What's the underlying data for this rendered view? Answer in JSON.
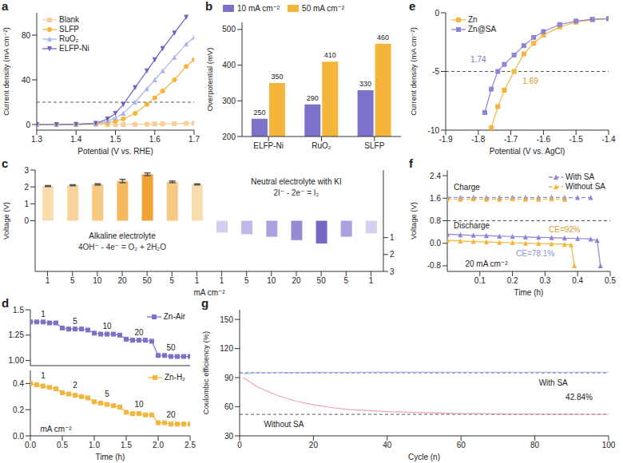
{
  "chart_data": [
    {
      "panel_label": "a",
      "type": "line",
      "x_label": "Potential (V vs. RHE)",
      "y_label": "Current density (mA cm⁻²)",
      "xlim": [
        1.3,
        1.7
      ],
      "xticks": [
        1.3,
        1.4,
        1.5,
        1.6,
        1.7
      ],
      "ylim": [
        -5,
        100
      ],
      "yticks": [
        0,
        40,
        80
      ],
      "reference_lines": [
        20
      ],
      "legend": "top-left",
      "series": [
        {
          "name": "Blank",
          "color": "#f7cf95",
          "marker": "square",
          "x": [
            1.3,
            1.35,
            1.4,
            1.45,
            1.48,
            1.5,
            1.52,
            1.55,
            1.58,
            1.6,
            1.62,
            1.65,
            1.68,
            1.7
          ],
          "values": [
            0,
            0,
            0,
            0,
            0,
            0,
            0,
            0.2,
            0.3,
            0.5,
            0.6,
            0.8,
            1,
            1.2
          ]
        },
        {
          "name": "SLFP",
          "color": "#f5b43a",
          "marker": "circle",
          "x": [
            1.3,
            1.35,
            1.4,
            1.45,
            1.48,
            1.5,
            1.52,
            1.55,
            1.58,
            1.6,
            1.62,
            1.65,
            1.68,
            1.7
          ],
          "values": [
            0,
            0,
            0,
            0.5,
            1.5,
            3,
            5,
            10,
            18,
            24,
            30,
            40,
            52,
            58
          ]
        },
        {
          "name": "RuO₂",
          "color": "#a8b6e8",
          "marker": "triangle",
          "x": [
            1.3,
            1.35,
            1.4,
            1.45,
            1.48,
            1.5,
            1.52,
            1.55,
            1.58,
            1.6,
            1.62,
            1.65,
            1.68,
            1.7
          ],
          "values": [
            0,
            0,
            0.2,
            0.8,
            3,
            6,
            10,
            20,
            32,
            40,
            48,
            60,
            72,
            78
          ]
        },
        {
          "name": "ELFP-Ni",
          "color": "#6f62c2",
          "marker": "triangle-down",
          "x": [
            1.3,
            1.35,
            1.4,
            1.45,
            1.48,
            1.5,
            1.52,
            1.55,
            1.58,
            1.6,
            1.62,
            1.65,
            1.68
          ],
          "values": [
            0,
            0,
            0.2,
            1,
            5,
            10,
            18,
            33,
            48,
            58,
            68,
            82,
            96
          ]
        }
      ]
    },
    {
      "panel_label": "b",
      "type": "bar",
      "categories": [
        "ELFP-Ni",
        "RuO₂",
        "SLFP"
      ],
      "y_label": "Overpotential (mV)",
      "ylim": [
        200,
        520
      ],
      "yticks": [
        200,
        300,
        400,
        500
      ],
      "legend": "top",
      "data_labels": true,
      "series": [
        {
          "name": "10 mA cm⁻²",
          "color": "#7d72c9",
          "values": [
            250,
            290,
            330
          ]
        },
        {
          "name": "50 mA cm⁻²",
          "color": "#f5b43a",
          "values": [
            350,
            410,
            460
          ]
        }
      ]
    },
    {
      "panel_label": "c",
      "type": "bar",
      "x_label": "mA cm⁻²",
      "y_label": "Voltage (V)",
      "categories": [
        1,
        5,
        10,
        20,
        50,
        5,
        1,
        1,
        5,
        10,
        20,
        50,
        5,
        1
      ],
      "ylim": [
        -3,
        3
      ],
      "yticks": [
        0,
        1,
        2,
        3
      ],
      "y2lim": [
        3,
        -3
      ],
      "y2ticks": [
        1,
        2,
        3
      ],
      "series": [
        {
          "name": "Alkaline electrolyte",
          "reaction": "4OH⁻ - 4e⁻ = O₂ + 2H₂O",
          "colors": [
            "#f9dcae",
            "#f8d39a",
            "#f7c87f",
            "#f5b95f",
            "#f2a335",
            "#f7c87f",
            "#f9dcae",
            null,
            null,
            null,
            null,
            null,
            null,
            null
          ],
          "values": [
            2.05,
            2.1,
            2.15,
            2.35,
            2.75,
            2.3,
            2.15,
            null,
            null,
            null,
            null,
            null,
            null,
            null
          ],
          "errors": [
            0.03,
            0.03,
            0.04,
            0.1,
            0.08,
            0.05,
            0.03,
            null,
            null,
            null,
            null,
            null,
            null,
            null
          ]
        },
        {
          "name": "Neutral electrolyte with KI",
          "reaction": "2I⁻ - 2e⁻ = I₂",
          "axis": "y2",
          "colors": [
            null,
            null,
            null,
            null,
            null,
            null,
            null,
            "#d3cff0",
            "#bfb9e8",
            "#aaa2de",
            "#948bd3",
            "#7468c2",
            "#aaa2de",
            "#d3cff0"
          ],
          "values": [
            null,
            null,
            null,
            null,
            null,
            null,
            null,
            0.7,
            0.8,
            0.95,
            1.15,
            1.35,
            0.95,
            0.75
          ]
        }
      ]
    },
    {
      "panel_label": "d",
      "type": "line",
      "tick_labels": "y",
      "xlim": [
        0,
        2.5
      ],
      "ylim": [
        0.95,
        1.5
      ],
      "yticks": [
        {
          "value": 1,
          "label": "1.00"
        },
        1.25,
        1.5
      ],
      "legend": "top-right",
      "series": [
        {
          "name": "Zn-Air",
          "color": "#7d72c9",
          "marker": "square",
          "x": [
            0,
            0.1,
            0.2,
            0.3,
            0.4,
            0.5,
            0.6,
            0.7,
            0.8,
            0.9,
            1,
            1.1,
            1.2,
            1.3,
            1.4,
            1.5,
            1.6,
            1.7,
            1.8,
            1.9,
            2,
            2.1,
            2.2,
            2.3,
            2.4,
            2.5
          ],
          "values": [
            1.38,
            1.38,
            1.38,
            1.37,
            1.37,
            1.32,
            1.31,
            1.31,
            1.31,
            1.3,
            1.27,
            1.26,
            1.26,
            1.26,
            1.25,
            1.21,
            1.2,
            1.2,
            1.2,
            1.19,
            1.05,
            1.05,
            1.04,
            1.04,
            1.04,
            1.04
          ]
        }
      ],
      "annotations": [
        {
          "text": "1",
          "x": 0.2,
          "y": 1.46
        },
        {
          "text": "5",
          "x": 0.7,
          "y": 1.39
        },
        {
          "text": "10",
          "x": 1.2,
          "y": 1.34
        },
        {
          "text": "20",
          "x": 1.7,
          "y": 1.28
        },
        {
          "text": "50",
          "x": 2.2,
          "y": 1.13
        }
      ]
    },
    {
      "type": "line",
      "x_label": "Time (h)",
      "xlim": [
        0,
        2.5
      ],
      "xticks": [
        {
          "value": 0,
          "label": "0.0"
        },
        0.5,
        {
          "value": 1,
          "label": "1.0"
        },
        1.5,
        {
          "value": 2,
          "label": "2.0"
        },
        2.5
      ],
      "ylim": [
        0,
        0.5
      ],
      "yticks": [
        {
          "value": 0,
          "label": "0.0"
        },
        0.2,
        0.4
      ],
      "legend": "top-right",
      "series": [
        {
          "name": "Zn-H₂",
          "color": "#f5b43a",
          "marker": "square",
          "x": [
            0,
            0.1,
            0.2,
            0.3,
            0.4,
            0.5,
            0.6,
            0.7,
            0.8,
            0.9,
            1,
            1.1,
            1.2,
            1.3,
            1.4,
            1.5,
            1.6,
            1.7,
            1.8,
            1.9,
            2,
            2.1,
            2.2,
            2.3,
            2.4,
            2.5
          ],
          "values": [
            0.4,
            0.39,
            0.38,
            0.37,
            0.36,
            0.33,
            0.32,
            0.31,
            0.3,
            0.29,
            0.26,
            0.25,
            0.24,
            0.23,
            0.22,
            0.18,
            0.17,
            0.17,
            0.16,
            0.16,
            0.1,
            0.1,
            0.09,
            0.09,
            0.09,
            0.09
          ]
        }
      ],
      "annotations": [
        {
          "text": "1",
          "x": 0.2,
          "y": 0.46
        },
        {
          "text": "2",
          "x": 0.7,
          "y": 0.39
        },
        {
          "text": "5",
          "x": 1.2,
          "y": 0.32
        },
        {
          "text": "10",
          "x": 1.7,
          "y": 0.24
        },
        {
          "text": "20",
          "x": 2.2,
          "y": 0.16
        },
        {
          "text": "mA cm⁻²",
          "x": 0.4,
          "y": 0.05
        }
      ]
    },
    {
      "panel_label": "e",
      "type": "line",
      "x_label": "Potential (V vs. AgCl)",
      "y_label": "Current density (mA cm⁻²)",
      "xlim": [
        -1.9,
        -1.4
      ],
      "xticks": [
        -1.9,
        -1.8,
        -1.7,
        -1.6,
        -1.5,
        -1.4
      ],
      "ylim": [
        -10,
        0
      ],
      "yticks": [
        -10,
        -5,
        0
      ],
      "reference_lines": [
        -5
      ],
      "legend": "top-left",
      "series": [
        {
          "name": "Zn",
          "color": "#f5b43a",
          "marker": "square",
          "x": [
            -1.4,
            -1.45,
            -1.5,
            -1.55,
            -1.6,
            -1.63,
            -1.66,
            -1.69,
            -1.72,
            -1.74,
            -1.76
          ],
          "values": [
            -0.5,
            -0.6,
            -0.8,
            -1.2,
            -1.9,
            -2.6,
            -3.5,
            -5,
            -6.6,
            -8,
            -9.8
          ]
        },
        {
          "name": "Zn@SA",
          "color": "#8e84d6",
          "marker": "square",
          "x": [
            -1.4,
            -1.45,
            -1.5,
            -1.55,
            -1.6,
            -1.63,
            -1.66,
            -1.69,
            -1.72,
            -1.74,
            -1.76,
            -1.78
          ],
          "values": [
            -0.5,
            -0.55,
            -0.7,
            -1,
            -1.6,
            -2.1,
            -2.8,
            -3.6,
            -4.4,
            -5,
            -6.5,
            -8.5
          ]
        }
      ],
      "annotations": [
        {
          "text": "1.74",
          "x": -1.8,
          "y": -4,
          "color": "#7d72c9"
        },
        {
          "text": "1.69",
          "x": -1.64,
          "y": -5.8,
          "color": "#d99a2b"
        }
      ]
    },
    {
      "panel_label": "f",
      "type": "line",
      "x_label": "Time (h)",
      "y_label": "Voltage (V)",
      "xlim": [
        0,
        0.5
      ],
      "xticks": [
        0.1,
        0.2,
        0.3,
        0.4,
        0.5
      ],
      "ylim": [
        -1,
        2.6
      ],
      "yticks": [
        -0.8,
        {
          "value": 0,
          "label": "0.0"
        },
        0.8,
        1.6,
        2.4
      ],
      "reference_lines": [
        0.8
      ],
      "legend": "top-right",
      "series": [
        {
          "name": "With SA",
          "color": "#8e84d6",
          "marker": "triangle",
          "line_style": "dashed",
          "x": [
            0,
            0.04,
            0.08,
            0.12,
            0.16,
            0.2,
            0.24,
            0.28,
            0.32,
            0.36,
            0.4,
            0.44
          ],
          "values": [
            1.63,
            1.62,
            1.63,
            1.62,
            1.62,
            1.63,
            1.62,
            1.62,
            1.63,
            1.62,
            1.62,
            1.62
          ]
        },
        {
          "name": "Without SA",
          "color": "#f5b43a",
          "marker": "triangle",
          "line_style": "dashed",
          "x": [
            0,
            0.04,
            0.08,
            0.12,
            0.16,
            0.2,
            0.24,
            0.28,
            0.32,
            0.36
          ],
          "values": [
            1.57,
            1.56,
            1.57,
            1.56,
            1.56,
            1.57,
            1.56,
            1.56,
            1.57,
            1.56
          ]
        },
        {
          "name": "With SA",
          "color": "#8e84d6",
          "marker": "triangle",
          "x": [
            0,
            0.04,
            0.08,
            0.12,
            0.16,
            0.2,
            0.24,
            0.28,
            0.32,
            0.36,
            0.4,
            0.44,
            0.46,
            0.47
          ],
          "values": [
            0.32,
            0.3,
            0.28,
            0.27,
            0.25,
            0.24,
            0.22,
            0.21,
            0.2,
            0.18,
            0.17,
            0.15,
            0.1,
            -0.8
          ]
        },
        {
          "name": "Without SA",
          "color": "#f5b43a",
          "marker": "triangle",
          "x": [
            0,
            0.04,
            0.08,
            0.12,
            0.16,
            0.2,
            0.24,
            0.28,
            0.32,
            0.36,
            0.38,
            0.39
          ],
          "values": [
            0.1,
            0.08,
            0.06,
            0.05,
            0.03,
            0.02,
            0,
            -0.01,
            -0.02,
            -0.04,
            -0.06,
            -0.8
          ]
        }
      ],
      "annotations": [
        {
          "text": "Charge",
          "x": 0.06,
          "y": 2
        },
        {
          "text": "Discharge",
          "x": 0.075,
          "y": 0.62
        },
        {
          "text": "CE=92%",
          "x": 0.36,
          "y": 0.5,
          "color": "#d99a2b"
        },
        {
          "text": "CE=78.1%",
          "x": 0.27,
          "y": -0.35,
          "color": "#7f94d6"
        },
        {
          "text": "20 mA cm⁻²",
          "x": 0.12,
          "y": -0.72
        }
      ]
    },
    {
      "panel_label": "g",
      "type": "line",
      "x_label": "Cycle (n)",
      "y_label": "Coulombic efficiency (%)",
      "xlim": [
        0,
        100
      ],
      "xticks": [
        0,
        20,
        40,
        60,
        80,
        100
      ],
      "ylim": [
        30,
        160
      ],
      "yticks": [
        30,
        60,
        90,
        120,
        150
      ],
      "reference_lines": [
        95,
        52.16
      ],
      "series": [
        {
          "color": "#9fb0e8",
          "marker": "none",
          "x": [
            1,
            5,
            10,
            15,
            20,
            25,
            30,
            35,
            40,
            45,
            50,
            55,
            60,
            65,
            70,
            75,
            80,
            85,
            90,
            95,
            100
          ],
          "values": [
            94,
            95,
            95.2,
            95.3,
            95.3,
            95.4,
            95.4,
            95.5,
            95.5,
            95.5,
            95.5,
            95.6,
            95.6,
            95.6,
            95.6,
            95.6,
            95.6,
            95.6,
            95.6,
            95.6,
            95.6
          ]
        },
        {
          "color": "#f0a0b4",
          "marker": "none",
          "x": [
            1,
            5,
            10,
            15,
            20,
            25,
            30,
            35,
            40,
            45,
            50,
            55,
            60,
            65,
            70,
            75,
            80,
            85,
            90,
            95,
            100
          ],
          "values": [
            90,
            80,
            72,
            66,
            62,
            59,
            57,
            56,
            55,
            54.5,
            54,
            53.5,
            53,
            53,
            52.8,
            52.6,
            52.5,
            52.4,
            52.3,
            52.2,
            52.2
          ]
        }
      ],
      "annotations": [
        {
          "text": "With SA",
          "x": 85,
          "y": 85
        },
        {
          "text": "Without SA",
          "x": 12,
          "y": 42
        },
        {
          "text": "42.84%",
          "x": 92,
          "y": 70
        }
      ]
    }
  ]
}
